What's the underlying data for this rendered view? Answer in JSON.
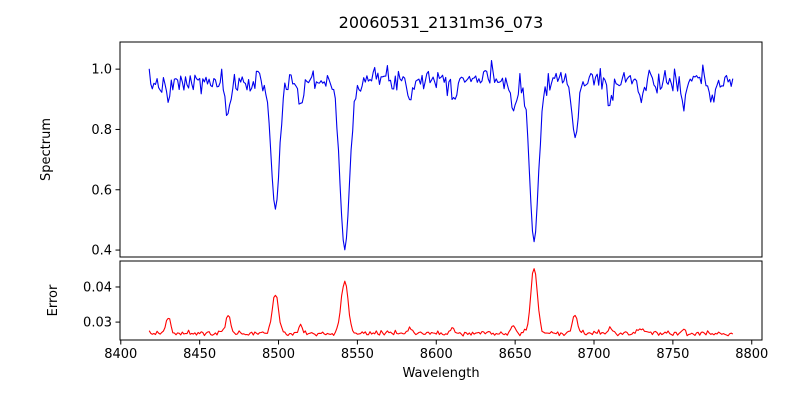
{
  "figure": {
    "background": "#ffffff",
    "spine_color": "#000000",
    "text_color": "#000000"
  },
  "chart_data": {
    "type": "line",
    "title": "20060531_2131m36_073",
    "xlabel": "Wavelength",
    "grid": false,
    "legend": null,
    "xlim": [
      8399.5,
      8806.5
    ],
    "xticks": [
      8400,
      8450,
      8500,
      8550,
      8600,
      8650,
      8700,
      8750,
      8800
    ],
    "xtick_labels": [
      "8400",
      "8450",
      "8500",
      "8550",
      "8600",
      "8650",
      "8700",
      "8750",
      "8800"
    ],
    "x_data_start": 8418,
    "x_data_end": 8788,
    "x_step": 1.0,
    "noise_seed": 7,
    "panels": [
      {
        "id": "spectrum",
        "ylabel": "Spectrum",
        "line_color": "#0000ee",
        "ylim": [
          0.377,
          1.09
        ],
        "yticks": [
          0.4,
          0.6,
          0.8,
          1.0
        ],
        "ytick_labels": [
          "0.4",
          "0.6",
          "0.8",
          "1.0"
        ],
        "continuum": {
          "base": 0.945,
          "bump_amp": 0.025,
          "bump_center": 8615,
          "bump_sigma": 120
        },
        "noise_sigma": 0.018,
        "absorption_lines": [
          {
            "center": 8430,
            "depth": 0.055,
            "sigma": 1.5
          },
          {
            "center": 8468,
            "depth": 0.115,
            "sigma": 1.8
          },
          {
            "center": 8498,
            "depth": 0.425,
            "sigma": 2.6
          },
          {
            "center": 8514,
            "depth": 0.085,
            "sigma": 1.5
          },
          {
            "center": 8542,
            "depth": 0.565,
            "sigma": 3.0
          },
          {
            "center": 8583,
            "depth": 0.065,
            "sigma": 1.4
          },
          {
            "center": 8611,
            "depth": 0.06,
            "sigma": 1.4
          },
          {
            "center": 8649,
            "depth": 0.115,
            "sigma": 1.6
          },
          {
            "center": 8662,
            "depth": 0.54,
            "sigma": 2.8
          },
          {
            "center": 8688,
            "depth": 0.195,
            "sigma": 2.0
          },
          {
            "center": 8710,
            "depth": 0.075,
            "sigma": 1.5
          },
          {
            "center": 8730,
            "depth": 0.065,
            "sigma": 1.4
          },
          {
            "center": 8757,
            "depth": 0.075,
            "sigma": 1.5
          },
          {
            "center": 8775,
            "depth": 0.06,
            "sigma": 1.4
          }
        ]
      },
      {
        "id": "error",
        "ylabel": "Error",
        "line_color": "#ff0000",
        "ylim": [
          0.0249,
          0.0474
        ],
        "yticks": [
          0.03,
          0.04
        ],
        "ytick_labels": [
          "0.03",
          "0.04"
        ],
        "baseline": 0.0268,
        "noise_sigma": 0.00035,
        "emission_peaks": [
          {
            "center": 8430,
            "amp": 0.0045,
            "sigma": 1.5
          },
          {
            "center": 8468,
            "amp": 0.0048,
            "sigma": 1.6
          },
          {
            "center": 8498,
            "amp": 0.0112,
            "sigma": 2.0
          },
          {
            "center": 8514,
            "amp": 0.002,
            "sigma": 1.5
          },
          {
            "center": 8542,
            "amp": 0.0148,
            "sigma": 2.2
          },
          {
            "center": 8583,
            "amp": 0.0014,
            "sigma": 1.4
          },
          {
            "center": 8611,
            "amp": 0.0013,
            "sigma": 1.4
          },
          {
            "center": 8649,
            "amp": 0.002,
            "sigma": 1.5
          },
          {
            "center": 8662,
            "amp": 0.0192,
            "sigma": 2.0
          },
          {
            "center": 8688,
            "amp": 0.0052,
            "sigma": 1.6
          },
          {
            "center": 8710,
            "amp": 0.0016,
            "sigma": 1.4
          },
          {
            "center": 8730,
            "amp": 0.0013,
            "sigma": 1.4
          },
          {
            "center": 8757,
            "amp": 0.0016,
            "sigma": 1.4
          }
        ]
      }
    ]
  }
}
